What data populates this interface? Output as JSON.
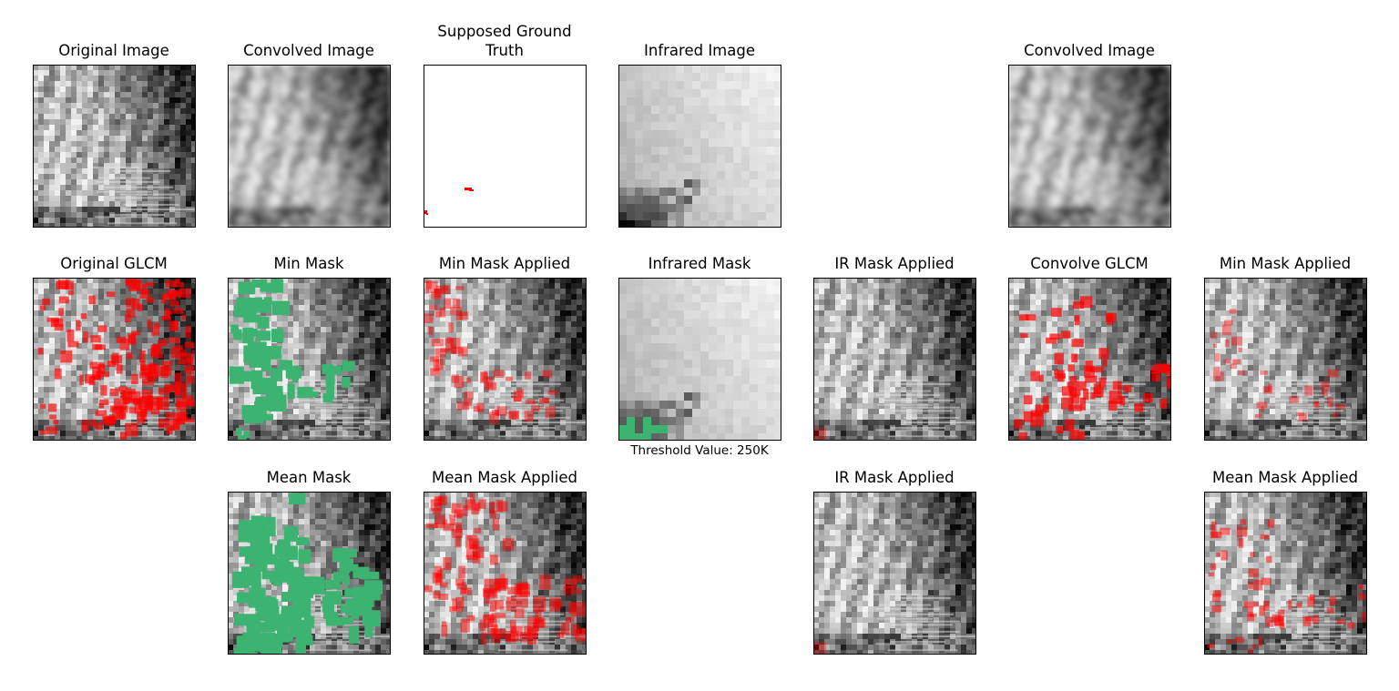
{
  "colors": {
    "overlay_red": "#ff0000",
    "mask_green": "#3cb371",
    "frame": "#000000"
  },
  "panels": {
    "original_image": {
      "title": "Original Image",
      "style": "grey"
    },
    "convolved_image": {
      "title": "Convolved Image",
      "style": "blur"
    },
    "ground_truth": {
      "title": "Supposed Ground\nTruth",
      "style": "truth"
    },
    "infrared_image": {
      "title": "Infrared Image",
      "style": "ir"
    },
    "convolved_image_2": {
      "title": "Convolved Image",
      "style": "blur"
    },
    "original_glcm": {
      "title": "Original GLCM",
      "style": "glcm"
    },
    "min_mask": {
      "title": "Min Mask",
      "style": "greenmin"
    },
    "min_mask_applied": {
      "title": "Min Mask Applied",
      "style": "redmin"
    },
    "infrared_mask": {
      "title": "Infrared Mask",
      "style": "irmask",
      "caption": "Threshold Value: 250K"
    },
    "ir_mask_applied": {
      "title": "IR Mask Applied",
      "style": "irapplied"
    },
    "convolve_glcm": {
      "title": "Convolve GLCM",
      "style": "convglcm"
    },
    "min_mask_applied_2": {
      "title": "Min Mask Applied",
      "style": "redmin2"
    },
    "mean_mask": {
      "title": "Mean Mask",
      "style": "greenmean"
    },
    "mean_mask_applied": {
      "title": "Mean Mask Applied",
      "style": "redmean"
    },
    "ir_mask_applied_2": {
      "title": "IR Mask Applied",
      "style": "irapplied"
    },
    "mean_mask_applied_2": {
      "title": "Mean Mask Applied",
      "style": "redmean2"
    }
  }
}
